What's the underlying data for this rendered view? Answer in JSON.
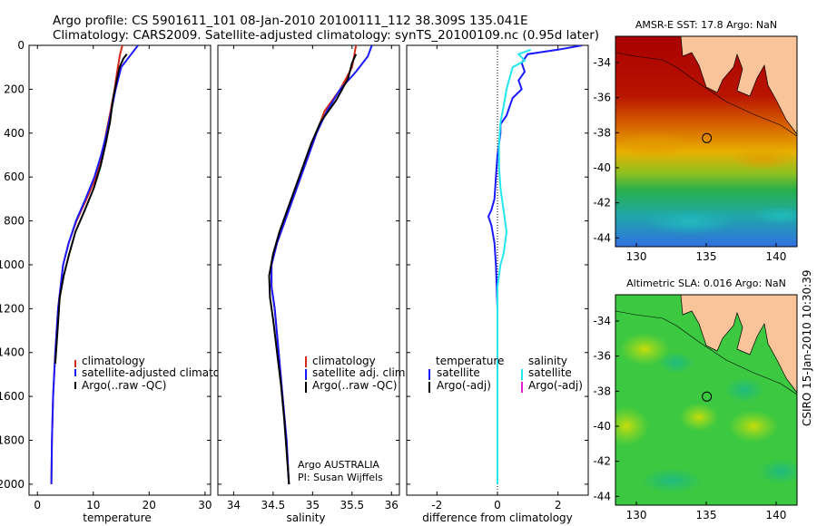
{
  "header": {
    "line1": "Argo profile: CS 5901611_101 08-Jan-2010 20100111_112 38.309S 135.041E",
    "line2": "Climatology: CARS2009. Satellite-adjusted climatology: synTS_20100109.nc (0.95d later)"
  },
  "credit": "CSIRO 15-Jan-2010 10:30:39",
  "colors": {
    "climatology": "#d42a1a",
    "satellite": "#1a1aff",
    "argo": "#000000",
    "satellite_salinity": "#22e8ee",
    "argo_adj_salinity": "#e020d0",
    "land": "#f9c49a"
  },
  "chart_data": [
    {
      "id": "temperature",
      "type": "line",
      "xlabel": "temperature",
      "ylabel": "",
      "xlim": [
        -1.5,
        31
      ],
      "ylim": [
        0,
        2050
      ],
      "y_reversed": true,
      "xticks": [
        0,
        10,
        20,
        30
      ],
      "yticks": [
        0,
        200,
        400,
        600,
        800,
        1000,
        1200,
        1400,
        1600,
        1800,
        2000
      ],
      "series": [
        {
          "name": "climatology",
          "color": "#d42a1a",
          "points": [
            [
              15.2,
              0
            ],
            [
              14.8,
              40
            ],
            [
              14.4,
              100
            ],
            [
              13.8,
              200
            ],
            [
              13.1,
              300
            ],
            [
              12.3,
              400
            ],
            [
              11.6,
              500
            ],
            [
              10.5,
              600
            ],
            [
              8.8,
              700
            ],
            [
              7.0,
              800
            ],
            [
              5.6,
              900
            ],
            [
              4.6,
              1000
            ],
            [
              3.7,
              1200
            ],
            [
              3.2,
              1400
            ],
            [
              2.8,
              1600
            ],
            [
              2.6,
              1800
            ],
            [
              2.5,
              2000
            ]
          ]
        },
        {
          "name": "satellite-adjusted climatology",
          "color": "#1a1aff",
          "points": [
            [
              18.0,
              0
            ],
            [
              16.8,
              40
            ],
            [
              15.0,
              100
            ],
            [
              14.0,
              200
            ],
            [
              13.2,
              300
            ],
            [
              12.4,
              400
            ],
            [
              11.4,
              500
            ],
            [
              10.2,
              600
            ],
            [
              8.6,
              700
            ],
            [
              6.9,
              800
            ],
            [
              5.6,
              900
            ],
            [
              4.6,
              1000
            ],
            [
              3.7,
              1200
            ],
            [
              3.2,
              1400
            ],
            [
              2.8,
              1600
            ],
            [
              2.6,
              1800
            ],
            [
              2.5,
              2000
            ]
          ]
        },
        {
          "name": "Argo(..raw -QC)",
          "color": "#000000",
          "points": [
            [
              16.0,
              40
            ],
            [
              15.4,
              60
            ],
            [
              14.7,
              100
            ],
            [
              14.2,
              160
            ],
            [
              13.5,
              250
            ],
            [
              13.0,
              350
            ],
            [
              12.2,
              450
            ],
            [
              11.3,
              550
            ],
            [
              10.1,
              650
            ],
            [
              8.5,
              750
            ],
            [
              6.8,
              850
            ],
            [
              5.7,
              950
            ],
            [
              4.7,
              1050
            ],
            [
              4.0,
              1150
            ],
            [
              3.6,
              1300
            ],
            [
              3.2,
              1450
            ]
          ]
        }
      ]
    },
    {
      "id": "salinity",
      "type": "line",
      "xlabel": "salinity",
      "ylabel": "",
      "xlim": [
        33.8,
        36.1
      ],
      "ylim": [
        0,
        2050
      ],
      "y_reversed": true,
      "xticks": [
        34,
        34.5,
        35,
        35.5,
        36
      ],
      "series": [
        {
          "name": "climatology",
          "color": "#d42a1a",
          "points": [
            [
              35.55,
              0
            ],
            [
              35.5,
              100
            ],
            [
              35.35,
              200
            ],
            [
              35.15,
              300
            ],
            [
              35.05,
              400
            ],
            [
              34.95,
              500
            ],
            [
              34.85,
              600
            ],
            [
              34.75,
              700
            ],
            [
              34.65,
              800
            ],
            [
              34.55,
              900
            ],
            [
              34.48,
              1000
            ],
            [
              34.48,
              1100
            ],
            [
              34.52,
              1200
            ],
            [
              34.57,
              1400
            ],
            [
              34.62,
              1600
            ],
            [
              34.67,
              1800
            ],
            [
              34.7,
              2000
            ]
          ]
        },
        {
          "name": "satellite adj. clim.",
          "color": "#1a1aff",
          "points": [
            [
              35.75,
              0
            ],
            [
              35.7,
              50
            ],
            [
              35.55,
              120
            ],
            [
              35.35,
              200
            ],
            [
              35.18,
              300
            ],
            [
              35.05,
              400
            ],
            [
              34.95,
              500
            ],
            [
              34.85,
              600
            ],
            [
              34.75,
              700
            ],
            [
              34.65,
              800
            ],
            [
              34.55,
              900
            ],
            [
              34.48,
              1000
            ],
            [
              34.48,
              1100
            ],
            [
              34.52,
              1200
            ],
            [
              34.57,
              1400
            ],
            [
              34.62,
              1600
            ],
            [
              34.67,
              1800
            ],
            [
              34.7,
              2000
            ]
          ]
        },
        {
          "name": "Argo(..raw -QC)",
          "color": "#000000",
          "points": [
            [
              35.55,
              40
            ],
            [
              35.5,
              80
            ],
            [
              35.45,
              150
            ],
            [
              35.3,
              250
            ],
            [
              35.1,
              350
            ],
            [
              34.98,
              450
            ],
            [
              34.88,
              550
            ],
            [
              34.78,
              650
            ],
            [
              34.68,
              750
            ],
            [
              34.58,
              850
            ],
            [
              34.5,
              950
            ],
            [
              34.45,
              1050
            ],
            [
              34.46,
              1150
            ],
            [
              34.5,
              1250
            ],
            [
              34.55,
              1400
            ],
            [
              34.6,
              1550
            ],
            [
              34.64,
              1700
            ],
            [
              34.67,
              1850
            ],
            [
              34.7,
              2000
            ]
          ]
        }
      ],
      "annotations": [
        "Argo AUSTRALIA",
        "PI: Susan Wijffels"
      ]
    },
    {
      "id": "difference",
      "type": "line",
      "xlabel": "difference from climatology",
      "ylabel": "",
      "xlim": [
        -3,
        3
      ],
      "ylim": [
        0,
        2050
      ],
      "y_reversed": true,
      "xticks": [
        -2,
        0,
        2
      ],
      "legend_groups": [
        "temperature",
        "salinity"
      ],
      "series": [
        {
          "name": "satellite",
          "group": "temperature",
          "color": "#1a1aff",
          "points": [
            [
              2.8,
              0
            ],
            [
              2.0,
              20
            ],
            [
              1.0,
              40
            ],
            [
              0.8,
              80
            ],
            [
              0.9,
              120
            ],
            [
              0.7,
              160
            ],
            [
              0.8,
              200
            ],
            [
              0.5,
              240
            ],
            [
              0.4,
              280
            ],
            [
              0.3,
              320
            ],
            [
              0.1,
              360
            ],
            [
              0.1,
              400
            ],
            [
              0.0,
              500
            ],
            [
              -0.05,
              600
            ],
            [
              -0.1,
              700
            ],
            [
              -0.2,
              750
            ],
            [
              -0.3,
              780
            ],
            [
              -0.2,
              820
            ],
            [
              -0.1,
              900
            ],
            [
              -0.05,
              1000
            ],
            [
              0.0,
              1200
            ],
            [
              0.0,
              1600
            ],
            [
              0.0,
              2000
            ]
          ]
        },
        {
          "name": "Argo(-adj)",
          "group": "temperature",
          "color": "#000000",
          "points": []
        },
        {
          "name": "satellite",
          "group": "salinity",
          "color": "#22e8ee",
          "points": [
            [
              1.1,
              20
            ],
            [
              0.7,
              40
            ],
            [
              0.9,
              70
            ],
            [
              0.5,
              100
            ],
            [
              0.4,
              150
            ],
            [
              0.3,
              200
            ],
            [
              0.2,
              280
            ],
            [
              0.1,
              350
            ],
            [
              0.05,
              450
            ],
            [
              0.05,
              550
            ],
            [
              0.1,
              650
            ],
            [
              0.2,
              750
            ],
            [
              0.3,
              850
            ],
            [
              0.2,
              950
            ],
            [
              0.1,
              1000
            ],
            [
              0.0,
              1100
            ],
            [
              0.0,
              1500
            ],
            [
              0.0,
              2000
            ]
          ]
        },
        {
          "name": "Argo(-adj)",
          "group": "salinity",
          "color": "#e020d0",
          "points": []
        }
      ]
    },
    {
      "id": "sst_map",
      "type": "heatmap",
      "title": "AMSR-E SST: 17.8 Argo: NaN",
      "xlim": [
        128.5,
        141.5
      ],
      "ylim": [
        -44.5,
        -32.5
      ],
      "xticks": [
        130,
        135,
        140
      ],
      "yticks": [
        -34,
        -36,
        -38,
        -40,
        -42,
        -44
      ],
      "argo_position": [
        135.041,
        -38.309
      ]
    },
    {
      "id": "sla_map",
      "type": "heatmap",
      "title": "Altimetric SLA: 0.016 Argo: NaN",
      "xlim": [
        128.5,
        141.5
      ],
      "ylim": [
        -44.5,
        -32.5
      ],
      "xticks": [
        130,
        135,
        140
      ],
      "yticks": [
        -34,
        -36,
        -38,
        -40,
        -42,
        -44
      ],
      "argo_position": [
        135.041,
        -38.309
      ]
    }
  ]
}
